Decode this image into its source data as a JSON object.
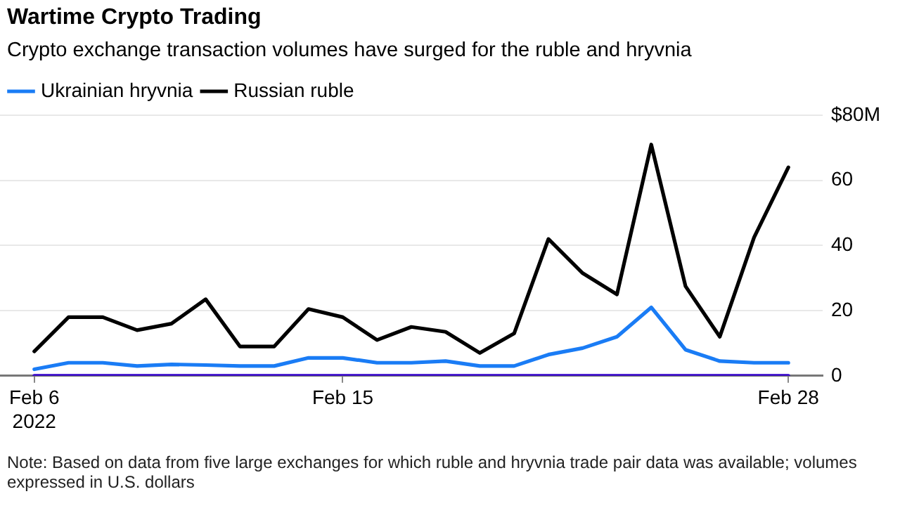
{
  "chart_data": {
    "type": "line",
    "title": "Wartime Crypto Trading",
    "subtitle": "Crypto exchange transaction volumes have surged for the ruble and hryvnia",
    "x": [
      "2022-02-06",
      "2022-02-07",
      "2022-02-08",
      "2022-02-09",
      "2022-02-10",
      "2022-02-11",
      "2022-02-12",
      "2022-02-13",
      "2022-02-14",
      "2022-02-15",
      "2022-02-16",
      "2022-02-17",
      "2022-02-18",
      "2022-02-19",
      "2022-02-20",
      "2022-02-21",
      "2022-02-22",
      "2022-02-23",
      "2022-02-24",
      "2022-02-25",
      "2022-02-26",
      "2022-02-27",
      "2022-02-28"
    ],
    "series": [
      {
        "name": "Ukrainian hryvnia",
        "color": "#1a7cf5",
        "values": [
          2,
          4,
          4,
          3,
          3.5,
          3.3,
          3,
          3,
          5.5,
          5.5,
          4,
          4,
          4.5,
          3,
          3,
          6.5,
          8.5,
          12,
          21,
          8,
          4.5,
          4,
          4
        ]
      },
      {
        "name": "Russian ruble",
        "color": "#000000",
        "values": [
          7.5,
          18,
          18,
          14,
          16,
          23.5,
          9,
          9,
          20.5,
          18,
          11,
          15,
          13.5,
          7,
          13,
          42,
          31.5,
          25,
          71,
          27.5,
          12,
          42.5,
          64
        ]
      },
      {
        "color": "#3300cc",
        "values": [
          0,
          0,
          0,
          0,
          0,
          0,
          0,
          0,
          0,
          0,
          0,
          0,
          0,
          0,
          0,
          0,
          0,
          0,
          0,
          0,
          0,
          0,
          0
        ]
      }
    ],
    "xlim": [
      "2022-02-05",
      "2022-03-01"
    ],
    "xticks": [
      {
        "value": "2022-02-06",
        "label": "Feb 6\n2022"
      },
      {
        "value": "2022-02-15",
        "label": "Feb 15"
      },
      {
        "value": "2022-02-28",
        "label": "Feb 28"
      }
    ],
    "ylim": [
      0,
      80
    ],
    "yticks": [
      0,
      20,
      40,
      60,
      {
        "value": 80,
        "label": "$80M"
      }
    ],
    "grid": "y",
    "legend": "top left",
    "marker": "none",
    "line_style": "solid",
    "annotations": [
      "Note: Based on data from five large exchanges for which ruble and hryvnia trade pair data was available; volumes expressed in U.S. dollars"
    ]
  }
}
